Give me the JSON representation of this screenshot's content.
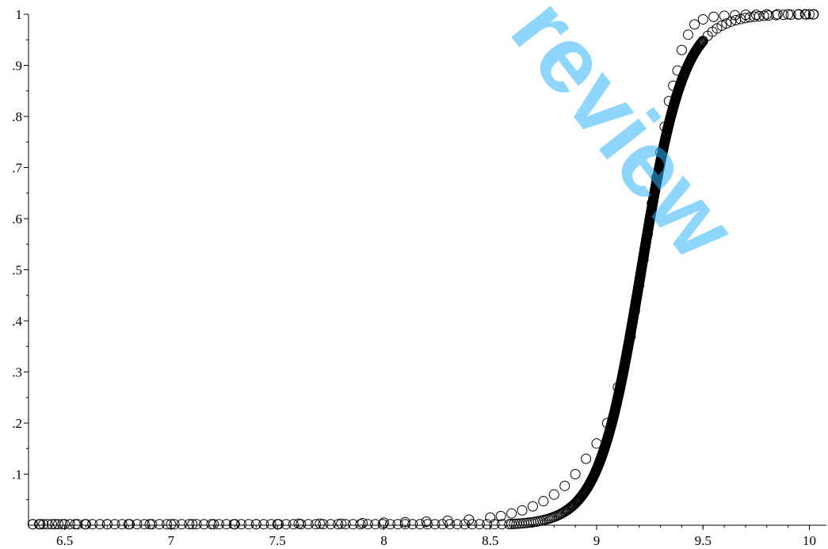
{
  "watermark": "review",
  "chart_data": {
    "type": "scatter",
    "title": "",
    "xlabel": "",
    "ylabel": "",
    "xlim": [
      6.33,
      10.08
    ],
    "ylim": [
      0,
      1
    ],
    "x_ticks": [
      6.5,
      7,
      7.5,
      8,
      8.5,
      9,
      9.5,
      10
    ],
    "x_tick_labels": [
      "6.5",
      "7",
      "7.5",
      "8",
      "8.5",
      "9",
      "9.5",
      "10"
    ],
    "y_ticks": [
      0.1,
      0.2,
      0.3,
      0.4,
      0.5,
      0.6,
      0.7,
      0.8,
      0.9,
      1
    ],
    "y_tick_labels": [
      ".1",
      ".2",
      ".3",
      ".4",
      ".5",
      ".6",
      ".7",
      ".8",
      ".9",
      "1"
    ],
    "grid": false,
    "marker": "hollow-circle",
    "curve": {
      "form": "logistic",
      "midpoint": 9.21,
      "scale": 0.1,
      "x_range": [
        6.35,
        10.02
      ]
    },
    "series": [
      {
        "x": [
          6.35,
          6.38,
          6.4,
          6.44,
          6.47,
          6.5,
          6.55,
          6.6,
          6.7,
          6.8,
          6.9,
          7.0,
          7.1,
          7.2,
          7.3,
          7.4,
          7.5,
          7.6,
          7.7,
          7.8,
          7.9,
          8.0,
          8.1,
          8.2,
          8.3,
          8.4,
          8.5,
          8.55,
          8.6,
          8.65,
          8.7,
          8.75,
          8.8,
          8.85,
          8.9,
          8.95,
          9.0,
          9.05,
          9.1,
          9.13,
          9.16,
          9.18,
          9.2,
          9.22,
          9.24,
          9.26,
          9.28,
          9.3,
          9.32,
          9.34,
          9.36,
          9.38,
          9.4,
          9.43,
          9.46,
          9.5,
          9.55,
          9.6,
          9.65,
          9.7,
          9.75,
          9.8,
          9.85,
          9.9,
          9.95,
          9.98,
          10.0,
          10.02
        ],
        "y": [
          0.002,
          0.002,
          0.002,
          0.002,
          0.002,
          0.002,
          0.002,
          0.002,
          0.002,
          0.002,
          0.002,
          0.002,
          0.002,
          0.002,
          0.002,
          0.002,
          0.002,
          0.003,
          0.003,
          0.003,
          0.004,
          0.005,
          0.006,
          0.007,
          0.009,
          0.011,
          0.015,
          0.018,
          0.023,
          0.029,
          0.037,
          0.047,
          0.06,
          0.077,
          0.1,
          0.13,
          0.16,
          0.2,
          0.27,
          0.31,
          0.37,
          0.42,
          0.47,
          0.52,
          0.57,
          0.63,
          0.68,
          0.73,
          0.78,
          0.83,
          0.86,
          0.89,
          0.93,
          0.96,
          0.98,
          0.99,
          0.995,
          0.997,
          0.998,
          0.999,
          0.999,
          1.0,
          1.0,
          1.0,
          1.0,
          1.0,
          1.0,
          1.0
        ]
      }
    ]
  }
}
